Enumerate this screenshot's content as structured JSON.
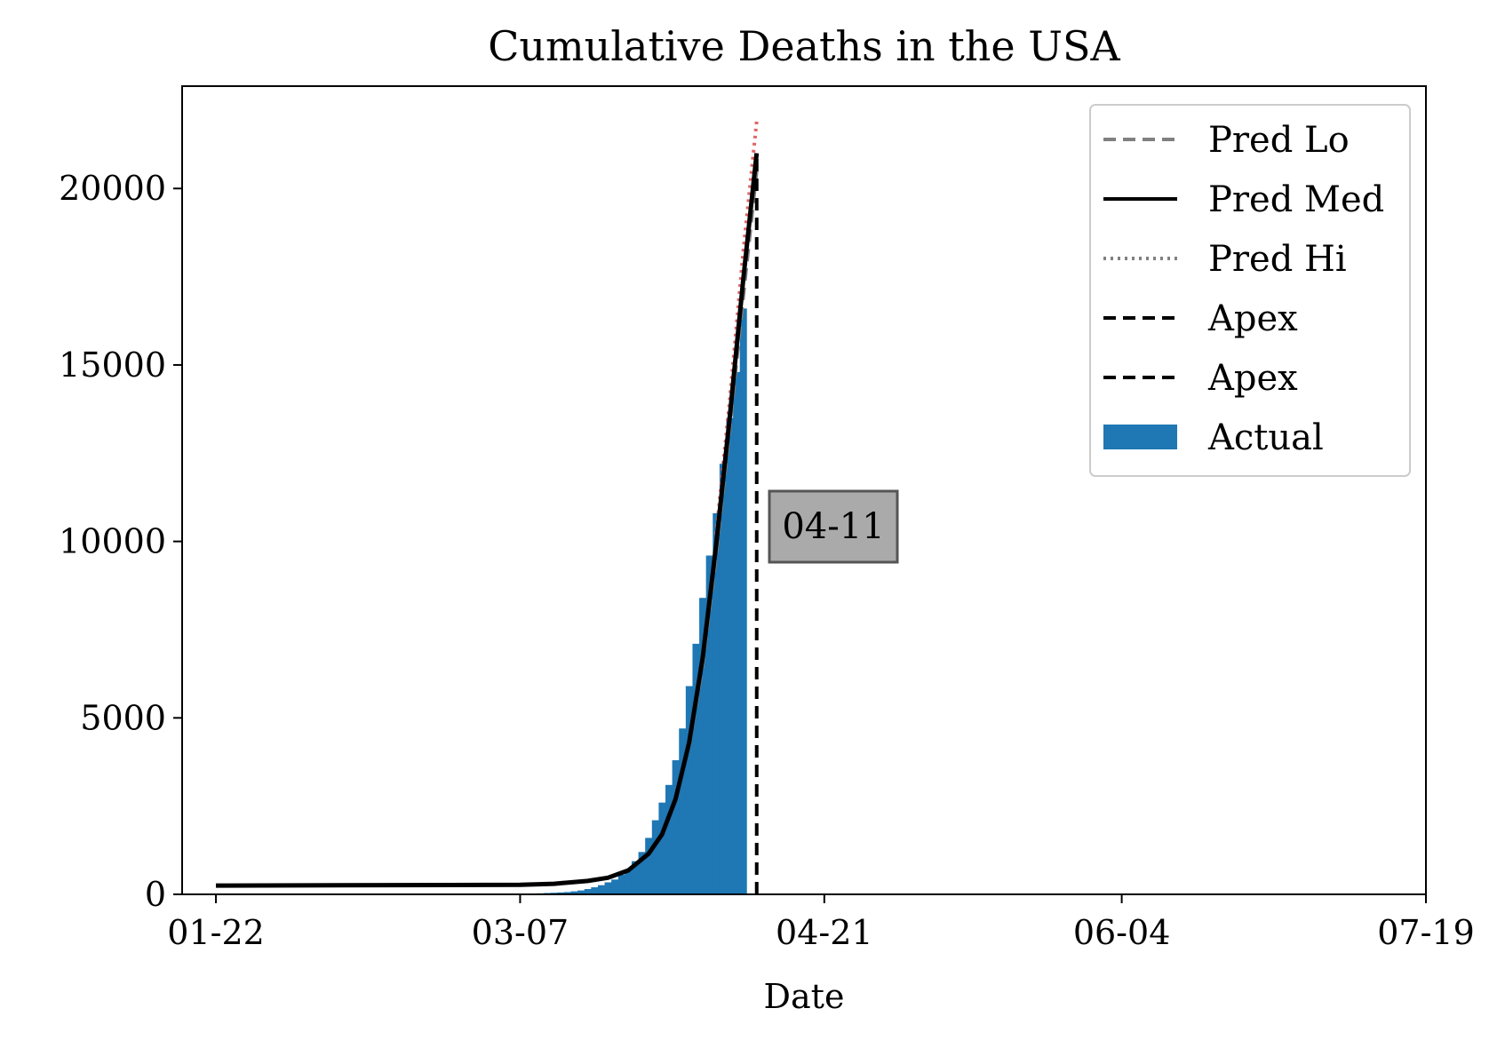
{
  "chart_data": {
    "type": "line",
    "title": "Cumulative Deaths in the USA",
    "xlabel": "Date",
    "ylabel": "",
    "x_ticks": [
      "01-22",
      "03-07",
      "04-21",
      "06-04",
      "07-19"
    ],
    "y_ticks": [
      "0",
      "5000",
      "10000",
      "15000",
      "20000"
    ],
    "xlim": [
      "01-17",
      "07-19"
    ],
    "ylim": [
      0,
      22900
    ],
    "grid": false,
    "legend_position": "top-right",
    "legend": [
      {
        "label": "Pred Lo",
        "style": "dashed",
        "color": "#808080"
      },
      {
        "label": "Pred Med",
        "style": "solid",
        "color": "#000000"
      },
      {
        "label": "Pred Hi",
        "style": "dotted",
        "color": "#808080"
      },
      {
        "label": "Apex",
        "style": "dashed",
        "color": "#000000"
      },
      {
        "label": "Apex",
        "style": "dashed",
        "color": "#000000"
      },
      {
        "label": "Actual",
        "style": "bar",
        "color": "#1f77b4"
      }
    ],
    "annotation": {
      "text": "04-11",
      "date": "04-11"
    },
    "apex_date": "04-11",
    "actual": {
      "name": "Actual",
      "color": "#1f77b4",
      "dates": [
        "03-10",
        "03-11",
        "03-12",
        "03-13",
        "03-14",
        "03-15",
        "03-16",
        "03-17",
        "03-18",
        "03-19",
        "03-20",
        "03-21",
        "03-22",
        "03-23",
        "03-24",
        "03-25",
        "03-26",
        "03-27",
        "03-28",
        "03-29",
        "03-30",
        "03-31",
        "04-01",
        "04-02",
        "04-03",
        "04-04",
        "04-05",
        "04-06",
        "04-07",
        "04-08",
        "04-09"
      ],
      "values": [
        30,
        38,
        45,
        55,
        65,
        85,
        110,
        150,
        200,
        260,
        340,
        420,
        560,
        700,
        940,
        1200,
        1600,
        2100,
        2600,
        3100,
        3800,
        4700,
        5900,
        7100,
        8400,
        9600,
        10800,
        12200,
        13500,
        14800,
        16600
      ]
    },
    "series": [
      {
        "name": "Pred Med",
        "color": "#000000",
        "dates": [
          "01-22",
          "03-07",
          "03-12",
          "03-17",
          "03-20",
          "03-23",
          "03-26",
          "03-28",
          "03-30",
          "04-01",
          "04-03",
          "04-05",
          "04-07",
          "04-09",
          "04-11"
        ],
        "values": [
          250,
          270,
          300,
          380,
          470,
          680,
          1150,
          1700,
          2700,
          4300,
          6700,
          9900,
          13500,
          17400,
          21000
        ]
      },
      {
        "name": "Pred Lo",
        "color": "#808080",
        "dates": [
          "04-01",
          "04-03",
          "04-05",
          "04-07",
          "04-09",
          "04-11"
        ],
        "values": [
          4200,
          6500,
          9600,
          13200,
          16900,
          20500
        ]
      },
      {
        "name": "Pred Hi",
        "color": "#e06666",
        "dates": [
          "04-05",
          "04-07",
          "04-09",
          "04-11"
        ],
        "values": [
          10200,
          14000,
          18200,
          21900
        ]
      }
    ]
  }
}
